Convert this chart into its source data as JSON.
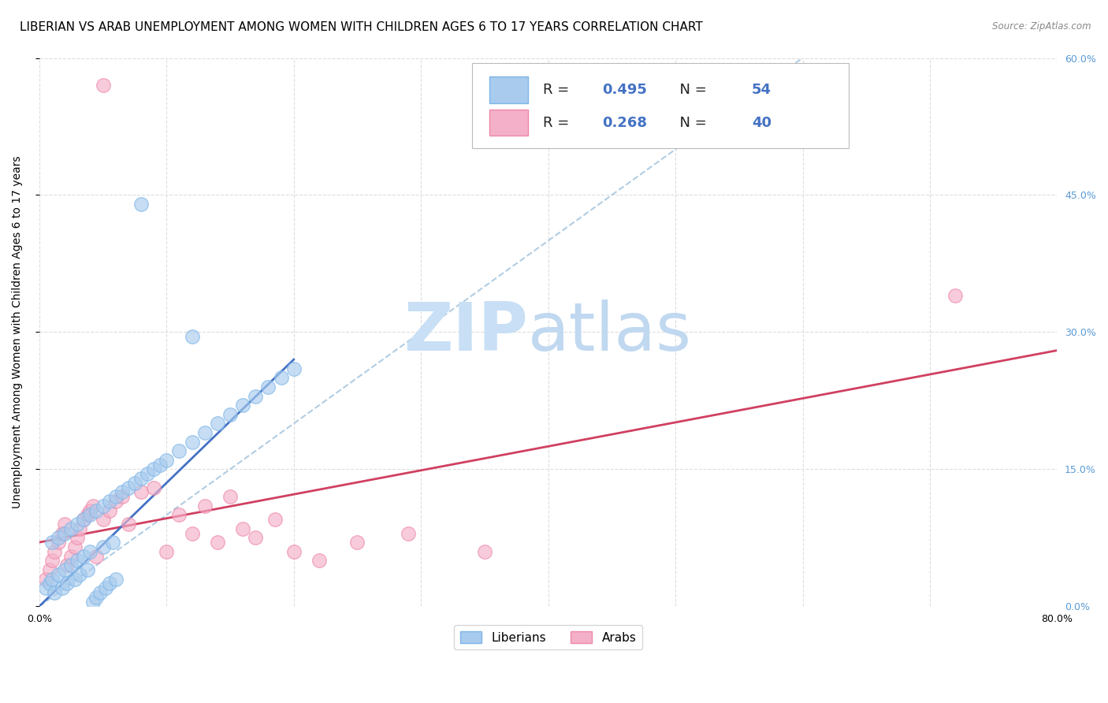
{
  "title": "LIBERIAN VS ARAB UNEMPLOYMENT AMONG WOMEN WITH CHILDREN AGES 6 TO 17 YEARS CORRELATION CHART",
  "source": "Source: ZipAtlas.com",
  "ylabel": "Unemployment Among Women with Children Ages 6 to 17 years",
  "xlim": [
    0.0,
    0.8
  ],
  "ylim": [
    0.0,
    0.6
  ],
  "xtick_vals": [
    0.0,
    0.1,
    0.2,
    0.3,
    0.4,
    0.5,
    0.6,
    0.7,
    0.8
  ],
  "xticklabels": [
    "0.0%",
    "",
    "",
    "",
    "",
    "",
    "",
    "",
    "80.0%"
  ],
  "ytick_vals": [
    0.0,
    0.15,
    0.3,
    0.45,
    0.6
  ],
  "yticklabels_right": [
    "0.0%",
    "15.0%",
    "30.0%",
    "45.0%",
    "60.0%"
  ],
  "liberian_face_color": "#A8CBEE",
  "liberian_edge_color": "#7EB6E8",
  "arab_face_color": "#F4B0C8",
  "arab_edge_color": "#EE88A8",
  "liberian_line_color": "#4472C4",
  "arab_line_color": "#D04060",
  "diagonal_line_color": "#90B8D8",
  "R_liberian": 0.495,
  "N_liberian": 54,
  "R_arab": 0.268,
  "N_arab": 40,
  "watermark_color_zip": "#C8DFF5",
  "watermark_color_atlas": "#C0D8F0",
  "title_fontsize": 11,
  "axis_label_fontsize": 10,
  "tick_fontsize": 9,
  "legend_color": "#4472C4",
  "grid_color": "#DDDDDD",
  "liberian_x": [
    0.005,
    0.008,
    0.01,
    0.012,
    0.015,
    0.018,
    0.02,
    0.022,
    0.025,
    0.028,
    0.03,
    0.032,
    0.035,
    0.038,
    0.04,
    0.042,
    0.045,
    0.048,
    0.05,
    0.052,
    0.055,
    0.058,
    0.06,
    0.01,
    0.015,
    0.02,
    0.025,
    0.03,
    0.035,
    0.04,
    0.045,
    0.05,
    0.055,
    0.06,
    0.065,
    0.07,
    0.075,
    0.08,
    0.085,
    0.09,
    0.095,
    0.1,
    0.11,
    0.12,
    0.13,
    0.14,
    0.15,
    0.16,
    0.17,
    0.18,
    0.19,
    0.2,
    0.12,
    0.08
  ],
  "liberian_y": [
    0.02,
    0.025,
    0.03,
    0.015,
    0.035,
    0.02,
    0.04,
    0.025,
    0.045,
    0.03,
    0.05,
    0.035,
    0.055,
    0.04,
    0.06,
    0.005,
    0.01,
    0.015,
    0.065,
    0.02,
    0.025,
    0.07,
    0.03,
    0.07,
    0.075,
    0.08,
    0.085,
    0.09,
    0.095,
    0.1,
    0.105,
    0.11,
    0.115,
    0.12,
    0.125,
    0.13,
    0.135,
    0.14,
    0.145,
    0.15,
    0.155,
    0.16,
    0.17,
    0.18,
    0.19,
    0.2,
    0.21,
    0.22,
    0.23,
    0.24,
    0.25,
    0.26,
    0.295,
    0.44
  ],
  "arab_x": [
    0.005,
    0.008,
    0.01,
    0.012,
    0.015,
    0.018,
    0.02,
    0.022,
    0.025,
    0.028,
    0.03,
    0.032,
    0.035,
    0.038,
    0.04,
    0.042,
    0.045,
    0.05,
    0.055,
    0.06,
    0.065,
    0.07,
    0.08,
    0.09,
    0.1,
    0.11,
    0.12,
    0.13,
    0.14,
    0.15,
    0.16,
    0.17,
    0.185,
    0.2,
    0.22,
    0.25,
    0.29,
    0.35,
    0.72,
    0.05
  ],
  "arab_y": [
    0.03,
    0.04,
    0.05,
    0.06,
    0.07,
    0.08,
    0.09,
    0.045,
    0.055,
    0.065,
    0.075,
    0.085,
    0.095,
    0.1,
    0.105,
    0.11,
    0.055,
    0.095,
    0.105,
    0.115,
    0.12,
    0.09,
    0.125,
    0.13,
    0.06,
    0.1,
    0.08,
    0.11,
    0.07,
    0.12,
    0.085,
    0.075,
    0.095,
    0.06,
    0.05,
    0.07,
    0.08,
    0.06,
    0.34,
    0.57
  ]
}
